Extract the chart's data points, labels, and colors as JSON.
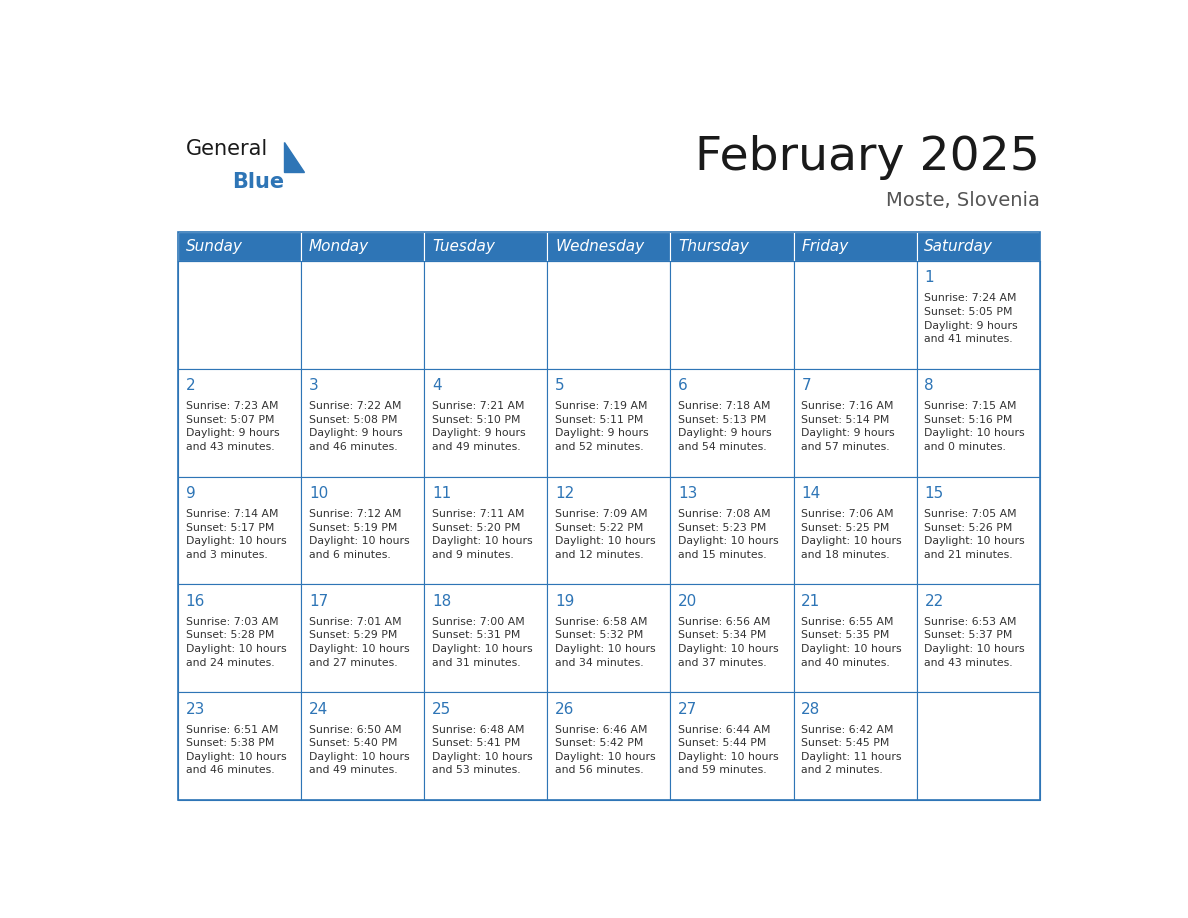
{
  "title": "February 2025",
  "subtitle": "Moste, Slovenia",
  "header_bg": "#2E75B6",
  "header_text_color": "#FFFFFF",
  "cell_bg": "#FFFFFF",
  "border_color": "#2E75B6",
  "day_headers": [
    "Sunday",
    "Monday",
    "Tuesday",
    "Wednesday",
    "Thursday",
    "Friday",
    "Saturday"
  ],
  "title_color": "#1a1a1a",
  "subtitle_color": "#555555",
  "day_number_color": "#2E75B6",
  "cell_text_color": "#333333",
  "logo_general_color": "#1a1a1a",
  "logo_blue_color": "#2E75B6",
  "weeks": [
    [
      {
        "day": 0,
        "text": ""
      },
      {
        "day": 0,
        "text": ""
      },
      {
        "day": 0,
        "text": ""
      },
      {
        "day": 0,
        "text": ""
      },
      {
        "day": 0,
        "text": ""
      },
      {
        "day": 0,
        "text": ""
      },
      {
        "day": 1,
        "text": "Sunrise: 7:24 AM\nSunset: 5:05 PM\nDaylight: 9 hours\nand 41 minutes."
      }
    ],
    [
      {
        "day": 2,
        "text": "Sunrise: 7:23 AM\nSunset: 5:07 PM\nDaylight: 9 hours\nand 43 minutes."
      },
      {
        "day": 3,
        "text": "Sunrise: 7:22 AM\nSunset: 5:08 PM\nDaylight: 9 hours\nand 46 minutes."
      },
      {
        "day": 4,
        "text": "Sunrise: 7:21 AM\nSunset: 5:10 PM\nDaylight: 9 hours\nand 49 minutes."
      },
      {
        "day": 5,
        "text": "Sunrise: 7:19 AM\nSunset: 5:11 PM\nDaylight: 9 hours\nand 52 minutes."
      },
      {
        "day": 6,
        "text": "Sunrise: 7:18 AM\nSunset: 5:13 PM\nDaylight: 9 hours\nand 54 minutes."
      },
      {
        "day": 7,
        "text": "Sunrise: 7:16 AM\nSunset: 5:14 PM\nDaylight: 9 hours\nand 57 minutes."
      },
      {
        "day": 8,
        "text": "Sunrise: 7:15 AM\nSunset: 5:16 PM\nDaylight: 10 hours\nand 0 minutes."
      }
    ],
    [
      {
        "day": 9,
        "text": "Sunrise: 7:14 AM\nSunset: 5:17 PM\nDaylight: 10 hours\nand 3 minutes."
      },
      {
        "day": 10,
        "text": "Sunrise: 7:12 AM\nSunset: 5:19 PM\nDaylight: 10 hours\nand 6 minutes."
      },
      {
        "day": 11,
        "text": "Sunrise: 7:11 AM\nSunset: 5:20 PM\nDaylight: 10 hours\nand 9 minutes."
      },
      {
        "day": 12,
        "text": "Sunrise: 7:09 AM\nSunset: 5:22 PM\nDaylight: 10 hours\nand 12 minutes."
      },
      {
        "day": 13,
        "text": "Sunrise: 7:08 AM\nSunset: 5:23 PM\nDaylight: 10 hours\nand 15 minutes."
      },
      {
        "day": 14,
        "text": "Sunrise: 7:06 AM\nSunset: 5:25 PM\nDaylight: 10 hours\nand 18 minutes."
      },
      {
        "day": 15,
        "text": "Sunrise: 7:05 AM\nSunset: 5:26 PM\nDaylight: 10 hours\nand 21 minutes."
      }
    ],
    [
      {
        "day": 16,
        "text": "Sunrise: 7:03 AM\nSunset: 5:28 PM\nDaylight: 10 hours\nand 24 minutes."
      },
      {
        "day": 17,
        "text": "Sunrise: 7:01 AM\nSunset: 5:29 PM\nDaylight: 10 hours\nand 27 minutes."
      },
      {
        "day": 18,
        "text": "Sunrise: 7:00 AM\nSunset: 5:31 PM\nDaylight: 10 hours\nand 31 minutes."
      },
      {
        "day": 19,
        "text": "Sunrise: 6:58 AM\nSunset: 5:32 PM\nDaylight: 10 hours\nand 34 minutes."
      },
      {
        "day": 20,
        "text": "Sunrise: 6:56 AM\nSunset: 5:34 PM\nDaylight: 10 hours\nand 37 minutes."
      },
      {
        "day": 21,
        "text": "Sunrise: 6:55 AM\nSunset: 5:35 PM\nDaylight: 10 hours\nand 40 minutes."
      },
      {
        "day": 22,
        "text": "Sunrise: 6:53 AM\nSunset: 5:37 PM\nDaylight: 10 hours\nand 43 minutes."
      }
    ],
    [
      {
        "day": 23,
        "text": "Sunrise: 6:51 AM\nSunset: 5:38 PM\nDaylight: 10 hours\nand 46 minutes."
      },
      {
        "day": 24,
        "text": "Sunrise: 6:50 AM\nSunset: 5:40 PM\nDaylight: 10 hours\nand 49 minutes."
      },
      {
        "day": 25,
        "text": "Sunrise: 6:48 AM\nSunset: 5:41 PM\nDaylight: 10 hours\nand 53 minutes."
      },
      {
        "day": 26,
        "text": "Sunrise: 6:46 AM\nSunset: 5:42 PM\nDaylight: 10 hours\nand 56 minutes."
      },
      {
        "day": 27,
        "text": "Sunrise: 6:44 AM\nSunset: 5:44 PM\nDaylight: 10 hours\nand 59 minutes."
      },
      {
        "day": 28,
        "text": "Sunrise: 6:42 AM\nSunset: 5:45 PM\nDaylight: 11 hours\nand 2 minutes."
      },
      {
        "day": 0,
        "text": ""
      }
    ]
  ]
}
